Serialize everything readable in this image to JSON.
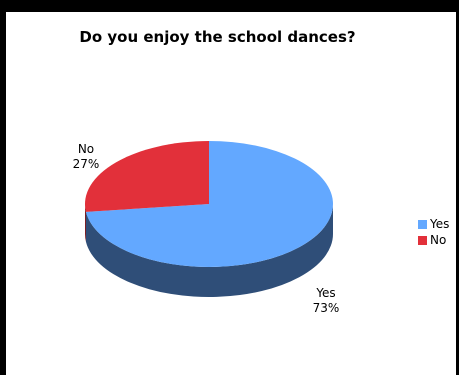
{
  "chart_data": {
    "type": "pie",
    "title": "Do you enjoy the school dances?",
    "slices": [
      {
        "label": "Yes",
        "value": 73,
        "value_label": "73%",
        "color": "#63a8ff",
        "side_color": "#2f4e78"
      },
      {
        "label": "No",
        "value": 27,
        "value_label": "27%",
        "color": "#e2303a",
        "side_color": "#7a1a20"
      }
    ],
    "legend": {
      "position": "right",
      "items": [
        {
          "label": "Yes",
          "color": "#63a8ff"
        },
        {
          "label": "No",
          "color": "#e2303a"
        }
      ]
    },
    "three_d": true
  }
}
